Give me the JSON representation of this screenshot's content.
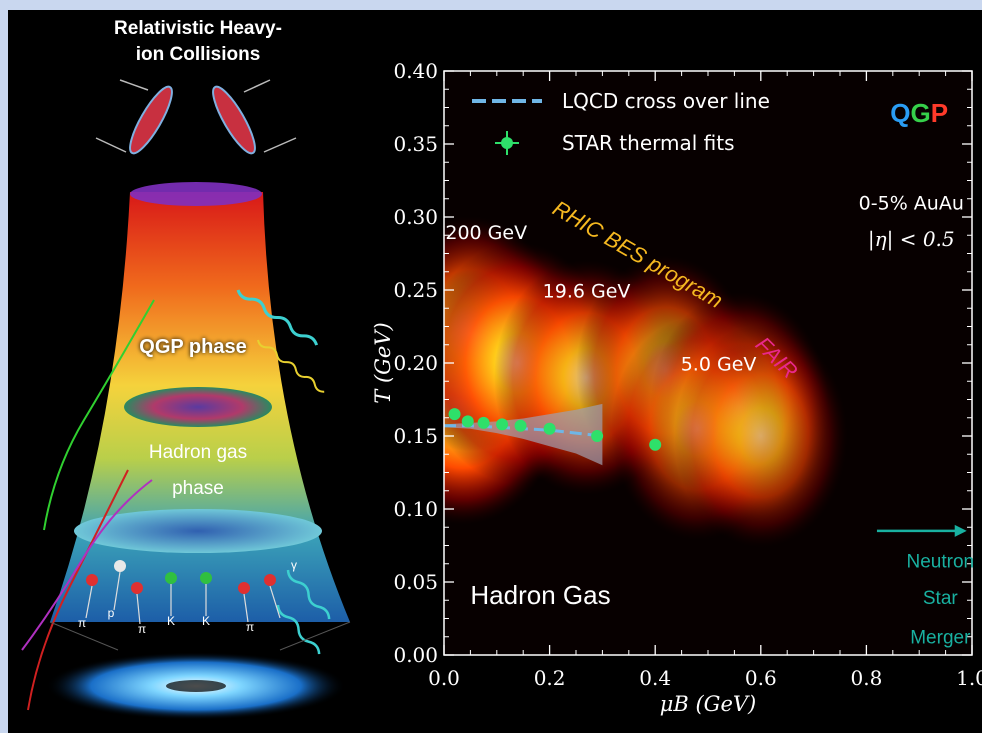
{
  "figure": {
    "left_title_line1": "Relativistic Heavy-",
    "left_title_line2": "ion Collisions",
    "qgp_phase_label": "QGP phase",
    "hadron_gas_label_line1": "Hadron gas",
    "hadron_gas_label_line2": "phase",
    "particle_labels": [
      "π",
      "p",
      "π",
      "K",
      "K",
      "π",
      "γ"
    ]
  },
  "chart_data": {
    "type": "heatmap",
    "xlabel": "μB (GeV)",
    "ylabel": "T (GeV)",
    "xlim": [
      0.0,
      1.0
    ],
    "ylim": [
      0.0,
      0.4
    ],
    "x_ticks": [
      "0.0",
      "0.2",
      "0.4",
      "0.6",
      "0.8",
      "1.0"
    ],
    "y_ticks": [
      "0.00",
      "0.05",
      "0.10",
      "0.15",
      "0.20",
      "0.25",
      "0.30",
      "0.35",
      "0.40"
    ],
    "x_tick_values": [
      0.0,
      0.2,
      0.4,
      0.6,
      0.8,
      1.0
    ],
    "y_tick_values": [
      0.0,
      0.05,
      0.1,
      0.15,
      0.2,
      0.25,
      0.3,
      0.35,
      0.4
    ],
    "legend": {
      "placement": "top-left",
      "entries": [
        {
          "label": "LQCD cross over line",
          "color": "#6fb6e6"
        },
        {
          "label": "STAR thermal fits",
          "color": "#2ee06a"
        }
      ]
    },
    "series": [
      {
        "name": "LQCD cross over line",
        "x": [
          0.0,
          0.05,
          0.1,
          0.15,
          0.2,
          0.25,
          0.3
        ],
        "y": [
          0.157,
          0.157,
          0.156,
          0.155,
          0.154,
          0.152,
          0.15
        ],
        "band_upper": [
          0.158,
          0.159,
          0.16,
          0.162,
          0.165,
          0.168,
          0.172
        ],
        "band_lower": [
          0.156,
          0.155,
          0.152,
          0.148,
          0.143,
          0.138,
          0.13
        ]
      },
      {
        "name": "STAR thermal fits",
        "x": [
          0.02,
          0.045,
          0.075,
          0.11,
          0.145,
          0.2,
          0.29,
          0.4
        ],
        "y": [
          0.165,
          0.16,
          0.159,
          0.158,
          0.157,
          0.155,
          0.15,
          0.144
        ]
      }
    ],
    "heat_blobs": [
      {
        "x": 0.035,
        "y": 0.175,
        "intensity": 1.0
      },
      {
        "x": 0.05,
        "y": 0.22,
        "intensity": 0.75
      },
      {
        "x": 0.14,
        "y": 0.2,
        "intensity": 0.85
      },
      {
        "x": 0.27,
        "y": 0.19,
        "intensity": 0.75
      },
      {
        "x": 0.42,
        "y": 0.195,
        "intensity": 0.65
      },
      {
        "x": 0.56,
        "y": 0.17,
        "intensity": 0.65
      },
      {
        "x": 0.48,
        "y": 0.155,
        "intensity": 0.55
      },
      {
        "x": 0.6,
        "y": 0.15,
        "intensity": 0.55
      }
    ],
    "annotations": [
      {
        "text": "QGP",
        "x": 0.9,
        "y": 0.365
      },
      {
        "text": "0-5% AuAu",
        "x": 0.885,
        "y": 0.305
      },
      {
        "text": "|η| < 0.5",
        "x": 0.885,
        "y": 0.28
      },
      {
        "text": "200 GeV",
        "x": 0.08,
        "y": 0.285
      },
      {
        "text": "RHIC BES program",
        "x": 0.36,
        "y": 0.27
      },
      {
        "text": "19.6 GeV",
        "x": 0.27,
        "y": 0.245
      },
      {
        "text": "FAIR",
        "x": 0.62,
        "y": 0.2
      },
      {
        "text": "5.0 GeV",
        "x": 0.52,
        "y": 0.195
      },
      {
        "text": "Hadron Gas",
        "x": 0.05,
        "y": 0.035
      },
      {
        "text": "Neutron",
        "x": 0.94,
        "y": 0.06
      },
      {
        "text": "Star",
        "x": 0.94,
        "y": 0.035
      },
      {
        "text": "Merger",
        "x": 0.94,
        "y": 0.008
      }
    ],
    "colors": {
      "qgp_q": "#2a9df4",
      "qgp_g": "#36d04a",
      "qgp_p": "#ff3a2a",
      "rhic_label": "#f5b820",
      "fair_label": "#e8288a",
      "neutron_star": "#19b0a0"
    }
  }
}
